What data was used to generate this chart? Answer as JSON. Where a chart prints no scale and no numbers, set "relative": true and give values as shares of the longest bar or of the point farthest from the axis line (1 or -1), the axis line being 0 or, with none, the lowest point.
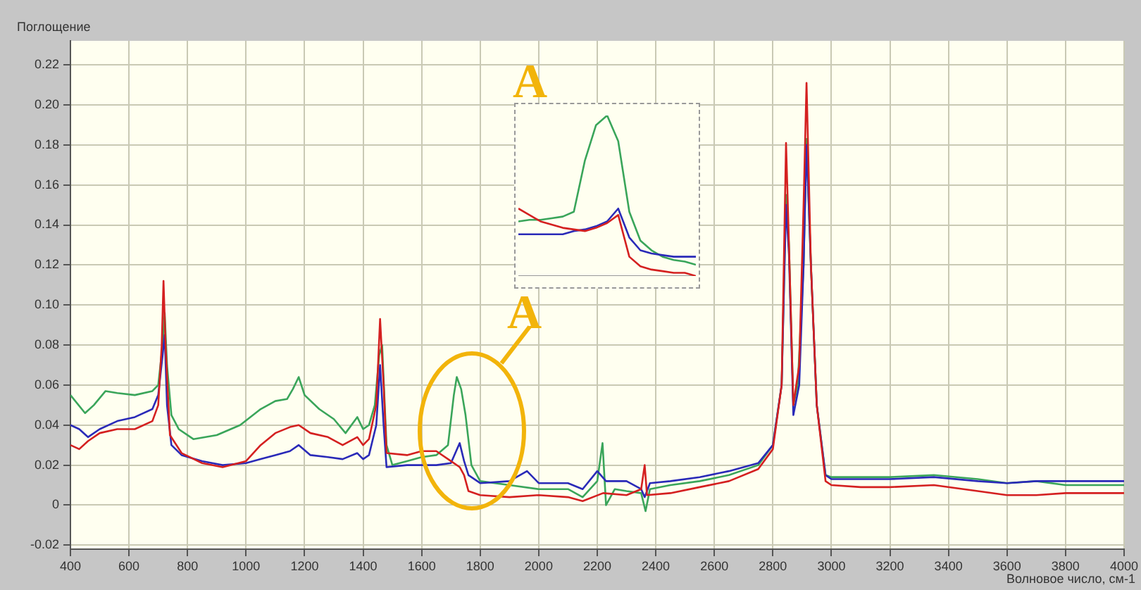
{
  "chart_data": [
    {
      "type": "line",
      "ylabel": "Поглощение",
      "xlabel": "Волновое число, см-1",
      "annotations": [
        "A"
      ],
      "xlim": [
        400,
        4000
      ],
      "xticks": [
        400,
        600,
        800,
        1000,
        1200,
        1400,
        1600,
        1800,
        2000,
        2200,
        2400,
        2600,
        2800,
        3000,
        3200,
        3400,
        3600,
        3800,
        4000
      ],
      "ylim": [
        -0.022,
        0.232
      ],
      "yticks": [
        -0.02,
        0,
        0.02,
        0.04,
        0.06,
        0.08,
        {
          "value": 0.1,
          "label": "0.10"
        },
        0.12,
        0.14,
        0.16,
        0.18,
        {
          "value": 0.2,
          "label": "0.20"
        },
        0.22
      ],
      "grid": true,
      "marker": "none",
      "line_style": "solid",
      "series": [
        {
          "color": "#d42020",
          "x": [
            400,
            430,
            460,
            500,
            560,
            620,
            680,
            700,
            712,
            718,
            725,
            740,
            780,
            850,
            920,
            1000,
            1050,
            1100,
            1150,
            1180,
            1220,
            1280,
            1330,
            1380,
            1400,
            1420,
            1445,
            1458,
            1470,
            1480,
            1550,
            1600,
            1650,
            1700,
            1730,
            1745,
            1760,
            1800,
            1900,
            2000,
            2100,
            2150,
            2220,
            2300,
            2350,
            2362,
            2370,
            2450,
            2550,
            2650,
            2750,
            2800,
            2830,
            2845,
            2855,
            2870,
            2890,
            2905,
            2915,
            2930,
            2950,
            2980,
            3000,
            3100,
            3200,
            3350,
            3500,
            3600,
            3700,
            3800,
            4000
          ],
          "values": [
            0.03,
            0.028,
            0.032,
            0.036,
            0.038,
            0.038,
            0.042,
            0.05,
            0.08,
            0.112,
            0.08,
            0.035,
            0.026,
            0.021,
            0.019,
            0.022,
            0.03,
            0.036,
            0.039,
            0.04,
            0.036,
            0.034,
            0.03,
            0.034,
            0.03,
            0.033,
            0.05,
            0.093,
            0.06,
            0.026,
            0.025,
            0.027,
            0.027,
            0.022,
            0.019,
            0.015,
            0.007,
            0.005,
            0.004,
            0.005,
            0.004,
            0.002,
            0.006,
            0.005,
            0.008,
            0.02,
            0.005,
            0.006,
            0.009,
            0.012,
            0.018,
            0.028,
            0.06,
            0.181,
            0.13,
            0.05,
            0.07,
            0.15,
            0.211,
            0.12,
            0.05,
            0.012,
            0.01,
            0.009,
            0.009,
            0.01,
            0.007,
            0.005,
            0.005,
            0.006,
            0.006
          ]
        },
        {
          "color": "#2a2ab8",
          "x": [
            400,
            430,
            460,
            500,
            560,
            620,
            680,
            700,
            715,
            722,
            730,
            745,
            780,
            850,
            920,
            1000,
            1050,
            1100,
            1150,
            1180,
            1220,
            1280,
            1330,
            1380,
            1400,
            1420,
            1445,
            1458,
            1470,
            1480,
            1550,
            1600,
            1650,
            1700,
            1730,
            1745,
            1760,
            1800,
            1900,
            1960,
            2000,
            2100,
            2150,
            2200,
            2230,
            2300,
            2350,
            2362,
            2380,
            2450,
            2550,
            2650,
            2750,
            2800,
            2830,
            2845,
            2855,
            2870,
            2890,
            2905,
            2915,
            2930,
            2950,
            2980,
            3000,
            3100,
            3200,
            3350,
            3500,
            3600,
            3700,
            3800,
            4000
          ],
          "values": [
            0.04,
            0.038,
            0.034,
            0.038,
            0.042,
            0.044,
            0.048,
            0.055,
            0.075,
            0.085,
            0.05,
            0.03,
            0.025,
            0.022,
            0.02,
            0.021,
            0.023,
            0.025,
            0.027,
            0.03,
            0.025,
            0.024,
            0.023,
            0.026,
            0.023,
            0.025,
            0.04,
            0.07,
            0.04,
            0.019,
            0.02,
            0.02,
            0.02,
            0.021,
            0.031,
            0.022,
            0.015,
            0.011,
            0.012,
            0.017,
            0.011,
            0.011,
            0.008,
            0.017,
            0.012,
            0.012,
            0.008,
            0.004,
            0.011,
            0.012,
            0.014,
            0.017,
            0.021,
            0.03,
            0.06,
            0.15,
            0.125,
            0.045,
            0.06,
            0.12,
            0.18,
            0.12,
            0.05,
            0.015,
            0.013,
            0.013,
            0.013,
            0.014,
            0.012,
            0.011,
            0.012,
            0.012,
            0.012
          ]
        },
        {
          "color": "#3aa55a",
          "x": [
            400,
            450,
            480,
            520,
            560,
            620,
            680,
            700,
            715,
            722,
            730,
            745,
            770,
            820,
            900,
            980,
            1050,
            1100,
            1140,
            1160,
            1180,
            1200,
            1250,
            1300,
            1340,
            1380,
            1400,
            1420,
            1440,
            1455,
            1465,
            1480,
            1500,
            1550,
            1600,
            1650,
            1690,
            1710,
            1720,
            1735,
            1750,
            1770,
            1800,
            1900,
            2000,
            2100,
            2150,
            2200,
            2218,
            2230,
            2260,
            2300,
            2350,
            2365,
            2380,
            2450,
            2550,
            2650,
            2750,
            2800,
            2830,
            2845,
            2855,
            2870,
            2885,
            2905,
            2915,
            2930,
            2950,
            2980,
            3000,
            3100,
            3200,
            3350,
            3500,
            3600,
            3700,
            3800,
            4000
          ],
          "values": [
            0.055,
            0.046,
            0.05,
            0.057,
            0.056,
            0.055,
            0.057,
            0.06,
            0.08,
            0.096,
            0.07,
            0.045,
            0.038,
            0.033,
            0.035,
            0.04,
            0.048,
            0.052,
            0.053,
            0.058,
            0.064,
            0.055,
            0.048,
            0.043,
            0.036,
            0.044,
            0.038,
            0.04,
            0.05,
            0.075,
            0.08,
            0.03,
            0.02,
            0.022,
            0.024,
            0.025,
            0.03,
            0.055,
            0.064,
            0.058,
            0.045,
            0.02,
            0.012,
            0.01,
            0.008,
            0.008,
            0.004,
            0.012,
            0.031,
            0.0,
            0.008,
            0.007,
            0.006,
            -0.003,
            0.008,
            0.01,
            0.012,
            0.015,
            0.02,
            0.03,
            0.06,
            0.155,
            0.13,
            0.05,
            0.06,
            0.12,
            0.183,
            0.12,
            0.05,
            0.015,
            0.014,
            0.014,
            0.014,
            0.015,
            0.013,
            0.011,
            0.012,
            0.01,
            0.01
          ]
        }
      ]
    },
    {
      "type": "line",
      "relative": true,
      "annotations": [
        "A"
      ],
      "marker": "none",
      "line_style": "solid",
      "categories": [
        null,
        null,
        null,
        null,
        null,
        null,
        null,
        null,
        null,
        null,
        null,
        null,
        null,
        null,
        null,
        null,
        null
      ],
      "series": [
        {
          "color": "#d42020",
          "values": [
            0.42,
            0.38,
            0.34,
            0.32,
            0.3,
            0.29,
            0.28,
            0.3,
            0.33,
            0.38,
            0.12,
            0.06,
            0.04,
            0.03,
            0.02,
            0.02,
            0
          ]
        },
        {
          "color": "#2a2ab8",
          "values": [
            0.26,
            0.26,
            0.26,
            0.26,
            0.26,
            0.28,
            0.29,
            0.31,
            0.34,
            0.42,
            0.24,
            0.16,
            0.14,
            0.13,
            0.12,
            0.12,
            0.12
          ]
        },
        {
          "color": "#3aa55a",
          "values": [
            0.34,
            0.35,
            0.35,
            0.36,
            0.37,
            0.4,
            0.72,
            0.94,
            1,
            0.84,
            0.4,
            0.22,
            0.16,
            0.12,
            0.1,
            0.09,
            0.07
          ]
        }
      ]
    }
  ]
}
